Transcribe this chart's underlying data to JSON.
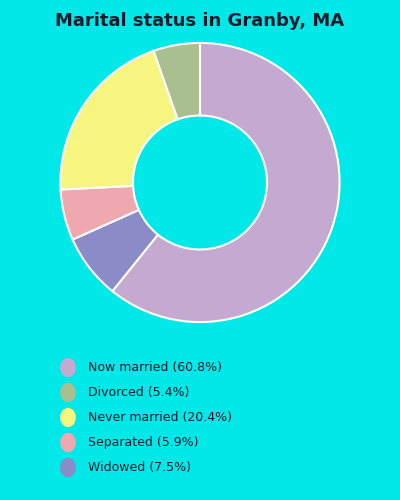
{
  "title": "Marital status in Granby, MA",
  "categories": [
    "Now married",
    "Widowed",
    "Separated",
    "Never married",
    "Divorced"
  ],
  "values": [
    60.8,
    7.5,
    5.9,
    20.4,
    5.4
  ],
  "colors": [
    "#c4aad0",
    "#8b8bc8",
    "#f0a8b0",
    "#f5f580",
    "#aabf90"
  ],
  "legend_labels": [
    "Now married (60.8%)",
    "Divorced (5.4%)",
    "Never married (20.4%)",
    "Separated (5.9%)",
    "Widowed (7.5%)"
  ],
  "legend_colors": [
    "#c4aad0",
    "#aabf90",
    "#f5f580",
    "#f0a8b0",
    "#8b8bc8"
  ],
  "bg_outer": "#00e8e8",
  "bg_inner_color": "#d8eedc",
  "title_fontsize": 13,
  "title_color": "#1a1a2e",
  "legend_text_color": "#1a1a2e"
}
